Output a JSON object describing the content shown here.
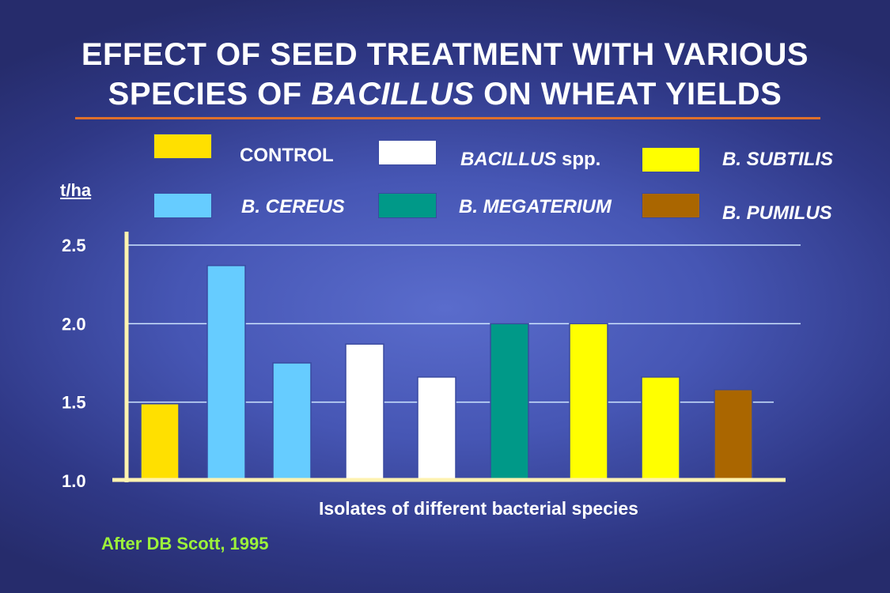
{
  "title": {
    "line1": "EFFECT OF SEED TREATMENT WITH VARIOUS",
    "line2_pre": "SPECIES OF ",
    "line2_italic": "BACILLUS",
    "line2_post": " ON WHEAT YIELDS"
  },
  "legend": [
    {
      "label": "CONTROL",
      "color": "#ffe000",
      "italic": false
    },
    {
      "label_italic": "BACILLUS",
      "label_normal": " spp.",
      "color": "#ffffff",
      "italic": true
    },
    {
      "label": "B. SUBTILIS",
      "color": "#ffff00",
      "italic": true
    },
    {
      "label": "B. CEREUS",
      "color": "#66ccff",
      "italic": true
    },
    {
      "label": "B. MEGATERIUM",
      "color": "#009988",
      "italic": true
    },
    {
      "label": "B. PUMILUS",
      "color": "#aa6600",
      "italic": true
    }
  ],
  "chart_data": {
    "type": "bar",
    "title": "EFFECT OF SEED TREATMENT WITH VARIOUS SPECIES OF BACILLUS ON WHEAT YIELDS",
    "xlabel": "Isolates of different bacterial species",
    "ylabel": "t/ha",
    "ylim": [
      1.0,
      2.5
    ],
    "yticks": [
      "1.0",
      "1.5",
      "2.0",
      "2.5"
    ],
    "ytick_values": [
      1.0,
      1.5,
      2.0,
      2.5
    ],
    "grid": true,
    "bars": [
      {
        "series": "CONTROL",
        "value": 1.49,
        "color": "#ffe000"
      },
      {
        "series": "B. CEREUS",
        "value": 2.37,
        "color": "#66ccff"
      },
      {
        "series": "B. CEREUS",
        "value": 1.75,
        "color": "#66ccff"
      },
      {
        "series": "BACILLUS spp.",
        "value": 1.87,
        "color": "#ffffff"
      },
      {
        "series": "BACILLUS spp.",
        "value": 1.66,
        "color": "#ffffff"
      },
      {
        "series": "B. MEGATERIUM",
        "value": 2.0,
        "color": "#009988"
      },
      {
        "series": "B. SUBTILIS",
        "value": 2.0,
        "color": "#ffff00"
      },
      {
        "series": "B. SUBTILIS",
        "value": 1.66,
        "color": "#ffff00"
      },
      {
        "series": "B. PUMILUS",
        "value": 1.58,
        "color": "#aa6600"
      }
    ]
  },
  "source": "After DB Scott, 1995",
  "colors": {
    "axis": "#fff3b0",
    "grid": "#cfe6ff",
    "title_underline": "#e0702a",
    "source": "#9cf23a"
  }
}
